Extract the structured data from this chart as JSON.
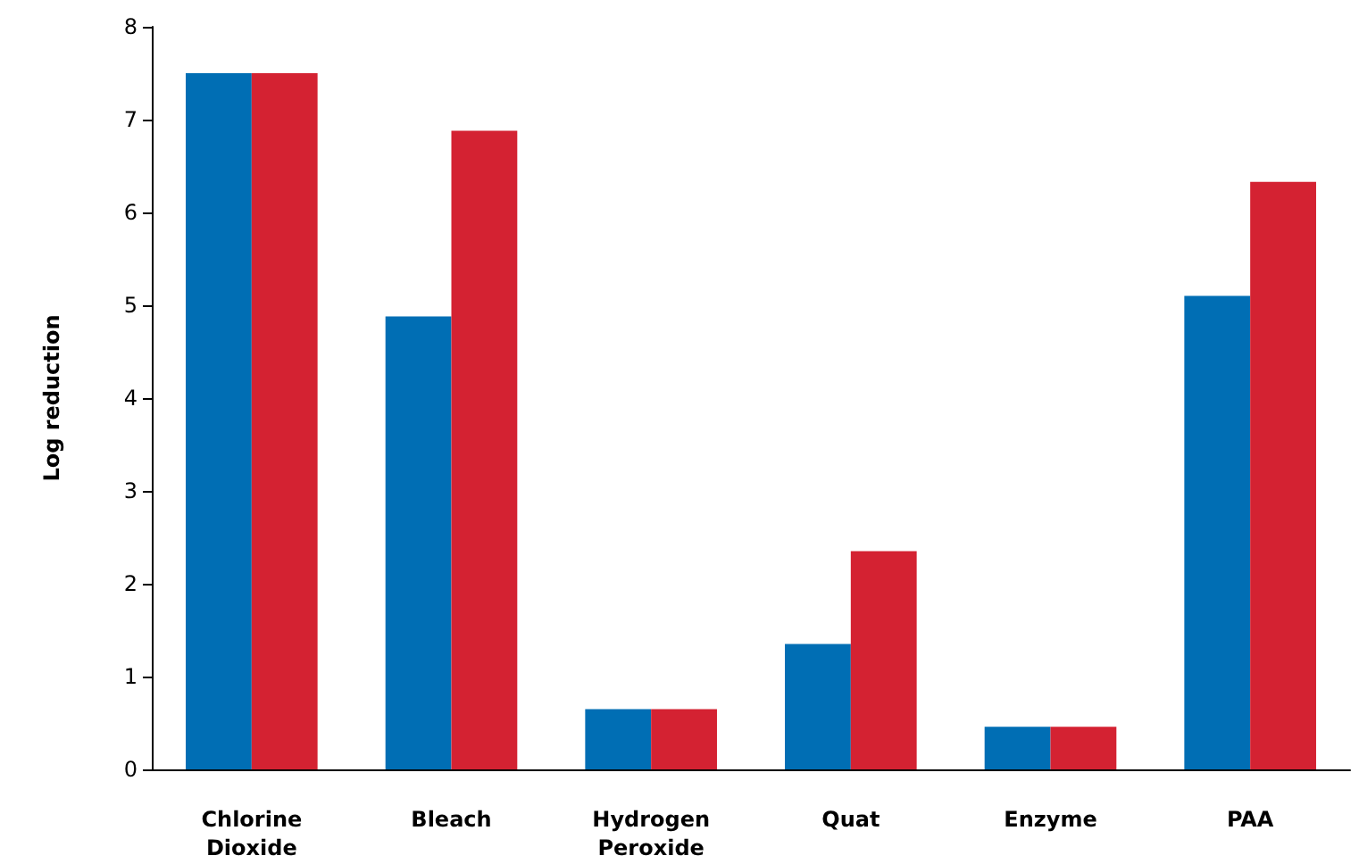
{
  "chart_data": {
    "type": "bar",
    "ylabel": "Log reduction",
    "categories": [
      "Chlorine\nDioxide",
      "Bleach",
      "Hydrogen\nPeroxide",
      "Quat",
      "Enzyme",
      "PAA"
    ],
    "series": [
      {
        "color": "#006eb4",
        "values": [
          7.5,
          4.88,
          0.65,
          1.35,
          0.46,
          5.1
        ]
      },
      {
        "color": "#d42232",
        "values": [
          7.5,
          6.88,
          0.65,
          2.35,
          0.46,
          6.33
        ]
      }
    ],
    "ylim": [
      0,
      8
    ],
    "yticks": [
      0,
      1,
      2,
      3,
      4,
      5,
      6,
      7,
      8
    ],
    "grid": false
  }
}
